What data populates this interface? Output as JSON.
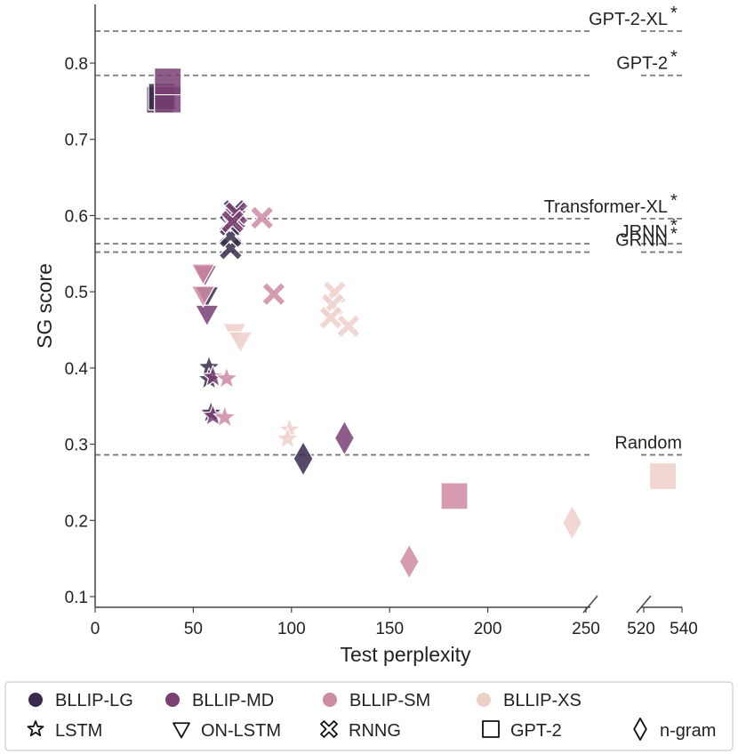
{
  "chart_data": {
    "type": "scatter",
    "xlabel": "Test perplexity",
    "ylabel": "SG score",
    "ylim": [
      0.085,
      0.855
    ],
    "x_segments": [
      [
        0,
        250
      ],
      [
        515,
        540
      ]
    ],
    "x_ticks": [
      0,
      50,
      100,
      150,
      200,
      250,
      520,
      540
    ],
    "y_ticks": [
      0.1,
      0.2,
      0.3,
      0.4,
      0.5,
      0.6,
      0.7,
      0.8
    ],
    "colors": {
      "BLLIP-LG": "#3a2a4e",
      "BLLIP-MD": "#7a3f73",
      "BLLIP-SM": "#cc8aa3",
      "BLLIP-XS": "#f0cfc9"
    },
    "color_legend": [
      "BLLIP-LG",
      "BLLIP-MD",
      "BLLIP-SM",
      "BLLIP-XS"
    ],
    "marker_legend": [
      {
        "marker": "star",
        "label": "LSTM"
      },
      {
        "marker": "triangle-down",
        "label": "ON-LSTM"
      },
      {
        "marker": "x",
        "label": "RNNG"
      },
      {
        "marker": "square",
        "label": "GPT-2"
      },
      {
        "marker": "diamond",
        "label": "n-gram"
      }
    ],
    "reference_lines": [
      {
        "label": "GPT-2-XL",
        "y": 0.842,
        "asterisk": true
      },
      {
        "label": "GPT-2",
        "y": 0.784,
        "asterisk": true
      },
      {
        "label": "Transformer-XL",
        "y": 0.596,
        "asterisk": true
      },
      {
        "label": "JRNN",
        "y": 0.563,
        "asterisk": true
      },
      {
        "label": "GRNN",
        "y": 0.552,
        "asterisk": true
      },
      {
        "label": "Random",
        "y": 0.286,
        "asterisk": false
      }
    ],
    "points": [
      {
        "model": "GPT-2",
        "corpus": "BLLIP-LG",
        "x": 33,
        "y": 0.752
      },
      {
        "model": "GPT-2",
        "corpus": "BLLIP-LG",
        "x": 34,
        "y": 0.756
      },
      {
        "model": "GPT-2",
        "corpus": "BLLIP-MD",
        "x": 37,
        "y": 0.752
      },
      {
        "model": "GPT-2",
        "corpus": "BLLIP-MD",
        "x": 37,
        "y": 0.776
      },
      {
        "model": "GPT-2",
        "corpus": "BLLIP-SM",
        "x": 183,
        "y": 0.232
      },
      {
        "model": "GPT-2",
        "corpus": "BLLIP-XS",
        "x": 530,
        "y": 0.258
      },
      {
        "model": "RNNG",
        "corpus": "BLLIP-LG",
        "x": 69,
        "y": 0.557
      },
      {
        "model": "RNNG",
        "corpus": "BLLIP-LG",
        "x": 69,
        "y": 0.573
      },
      {
        "model": "RNNG",
        "corpus": "BLLIP-LG",
        "x": 69,
        "y": 0.588
      },
      {
        "model": "RNNG",
        "corpus": "BLLIP-LG",
        "x": 71,
        "y": 0.606
      },
      {
        "model": "RNNG",
        "corpus": "BLLIP-MD",
        "x": 71,
        "y": 0.596
      },
      {
        "model": "RNNG",
        "corpus": "BLLIP-MD",
        "x": 72,
        "y": 0.603
      },
      {
        "model": "RNNG",
        "corpus": "BLLIP-MD",
        "x": 70,
        "y": 0.592
      },
      {
        "model": "RNNG",
        "corpus": "BLLIP-SM",
        "x": 85,
        "y": 0.597
      },
      {
        "model": "RNNG",
        "corpus": "BLLIP-SM",
        "x": 91,
        "y": 0.497
      },
      {
        "model": "RNNG",
        "corpus": "BLLIP-XS",
        "x": 122,
        "y": 0.499
      },
      {
        "model": "RNNG",
        "corpus": "BLLIP-XS",
        "x": 121,
        "y": 0.483
      },
      {
        "model": "RNNG",
        "corpus": "BLLIP-XS",
        "x": 120,
        "y": 0.466
      },
      {
        "model": "RNNG",
        "corpus": "BLLIP-XS",
        "x": 129,
        "y": 0.455
      },
      {
        "model": "ON-LSTM",
        "corpus": "BLLIP-LG",
        "x": 57,
        "y": 0.495
      },
      {
        "model": "ON-LSTM",
        "corpus": "BLLIP-MD",
        "x": 56,
        "y": 0.523
      },
      {
        "model": "ON-LSTM",
        "corpus": "BLLIP-MD",
        "x": 57,
        "y": 0.471
      },
      {
        "model": "ON-LSTM",
        "corpus": "BLLIP-SM",
        "x": 55,
        "y": 0.525
      },
      {
        "model": "ON-LSTM",
        "corpus": "BLLIP-SM",
        "x": 55,
        "y": 0.496
      },
      {
        "model": "ON-LSTM",
        "corpus": "BLLIP-XS",
        "x": 71,
        "y": 0.447
      },
      {
        "model": "ON-LSTM",
        "corpus": "BLLIP-XS",
        "x": 74,
        "y": 0.436
      },
      {
        "model": "LSTM",
        "corpus": "BLLIP-LG",
        "x": 58,
        "y": 0.401
      },
      {
        "model": "LSTM",
        "corpus": "BLLIP-LG",
        "x": 58,
        "y": 0.385
      },
      {
        "model": "LSTM",
        "corpus": "BLLIP-LG",
        "x": 59,
        "y": 0.341
      },
      {
        "model": "LSTM",
        "corpus": "BLLIP-MD",
        "x": 60,
        "y": 0.388
      },
      {
        "model": "LSTM",
        "corpus": "BLLIP-MD",
        "x": 60,
        "y": 0.337
      },
      {
        "model": "LSTM",
        "corpus": "BLLIP-SM",
        "x": 67,
        "y": 0.386
      },
      {
        "model": "LSTM",
        "corpus": "BLLIP-SM",
        "x": 66,
        "y": 0.335
      },
      {
        "model": "LSTM",
        "corpus": "BLLIP-XS",
        "x": 99,
        "y": 0.319
      },
      {
        "model": "LSTM",
        "corpus": "BLLIP-XS",
        "x": 98,
        "y": 0.307
      },
      {
        "model": "n-gram",
        "corpus": "BLLIP-LG",
        "x": 106,
        "y": 0.281
      },
      {
        "model": "n-gram",
        "corpus": "BLLIP-MD",
        "x": 127,
        "y": 0.308
      },
      {
        "model": "n-gram",
        "corpus": "BLLIP-SM",
        "x": 160,
        "y": 0.146
      },
      {
        "model": "n-gram",
        "corpus": "BLLIP-XS",
        "x": 243,
        "y": 0.197
      }
    ]
  }
}
